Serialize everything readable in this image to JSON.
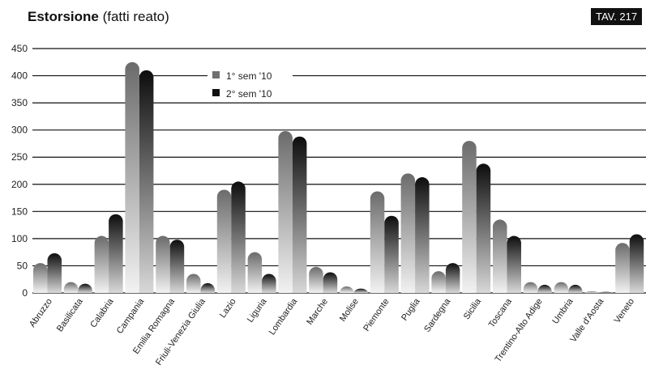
{
  "header": {
    "title_bold": "Estorsione",
    "title_rest": "(fatti reato)",
    "badge": "TAV. 217"
  },
  "chart_data": {
    "type": "bar",
    "categories": [
      "Abruzzo",
      "Basilicata",
      "Calabria",
      "Campania",
      "Emilia Romagna",
      "Friuli-Venezia Giulia",
      "Lazio",
      "Liguria",
      "Lombardia",
      "Marche",
      "Molise",
      "Piemonte",
      "Puglia",
      "Sardegna",
      "Sicilia",
      "Toscana",
      "Trentino-Alto Adige",
      "Umbria",
      "Valle d'Aosta",
      "Veneto"
    ],
    "series": [
      {
        "name": "1° sem '10",
        "values": [
          55,
          20,
          105,
          425,
          105,
          35,
          190,
          75,
          298,
          48,
          12,
          187,
          220,
          40,
          280,
          135,
          20,
          20,
          3,
          92
        ],
        "color": "#888888"
      },
      {
        "name": "2° sem '10",
        "values": [
          73,
          17,
          145,
          410,
          98,
          18,
          205,
          35,
          288,
          38,
          8,
          142,
          213,
          55,
          238,
          105,
          15,
          15,
          2,
          108
        ],
        "color": "#1a1a1a"
      }
    ],
    "yticks": [
      0,
      50,
      100,
      150,
      200,
      250,
      300,
      350,
      400,
      450
    ],
    "ylim": [
      0,
      450
    ],
    "legend_position": "top-center",
    "grid": true
  }
}
